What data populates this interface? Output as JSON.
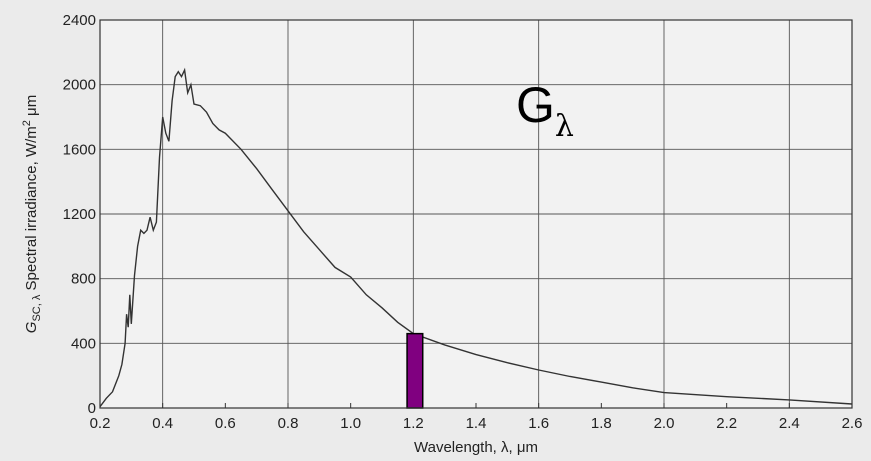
{
  "chart_data": {
    "type": "line",
    "title": "",
    "xlabel": "Wavelength, λ, μm",
    "ylabel_symbol": "G",
    "ylabel_symbol_sub": "SC, λ",
    "ylabel_text": " Spectral irradiance, W/m",
    "ylabel_sup": "2",
    "ylabel_unit": " μm",
    "annotation_main": "G",
    "annotation_sub": "λ",
    "xlim": [
      0.2,
      2.6
    ],
    "ylim": [
      0,
      2400
    ],
    "xticks": [
      "0.2",
      "0.4",
      "0.6",
      "0.8",
      "1.0",
      "1.2",
      "1.4",
      "1.6",
      "1.8",
      "2.0",
      "2.2",
      "2.4",
      "2.6"
    ],
    "yticks": [
      "0",
      "400",
      "800",
      "1200",
      "1600",
      "2000",
      "2400"
    ],
    "grid": true,
    "series": [
      {
        "color": "#333333",
        "x": [
          0.2,
          0.22,
          0.24,
          0.26,
          0.27,
          0.28,
          0.285,
          0.29,
          0.295,
          0.3,
          0.31,
          0.32,
          0.33,
          0.34,
          0.35,
          0.36,
          0.37,
          0.38,
          0.39,
          0.4,
          0.41,
          0.42,
          0.43,
          0.44,
          0.45,
          0.46,
          0.47,
          0.48,
          0.49,
          0.5,
          0.52,
          0.54,
          0.56,
          0.58,
          0.6,
          0.65,
          0.7,
          0.75,
          0.8,
          0.85,
          0.9,
          0.95,
          1.0,
          1.05,
          1.1,
          1.15,
          1.2,
          1.3,
          1.4,
          1.5,
          1.6,
          1.7,
          1.8,
          1.9,
          2.0,
          2.2,
          2.4,
          2.6
        ],
        "y": [
          8,
          60,
          100,
          200,
          270,
          400,
          580,
          500,
          700,
          520,
          820,
          1000,
          1100,
          1080,
          1100,
          1180,
          1100,
          1150,
          1550,
          1800,
          1700,
          1650,
          1900,
          2050,
          2080,
          2050,
          2090,
          1950,
          2000,
          1880,
          1870,
          1830,
          1760,
          1720,
          1700,
          1600,
          1480,
          1350,
          1220,
          1090,
          980,
          870,
          810,
          700,
          620,
          530,
          460,
          390,
          330,
          280,
          235,
          195,
          160,
          125,
          95,
          70,
          50,
          25
        ]
      }
    ],
    "highlight_bar": {
      "color": "#800080",
      "x_start": 1.18,
      "x_end": 1.23,
      "y": 460
    }
  }
}
